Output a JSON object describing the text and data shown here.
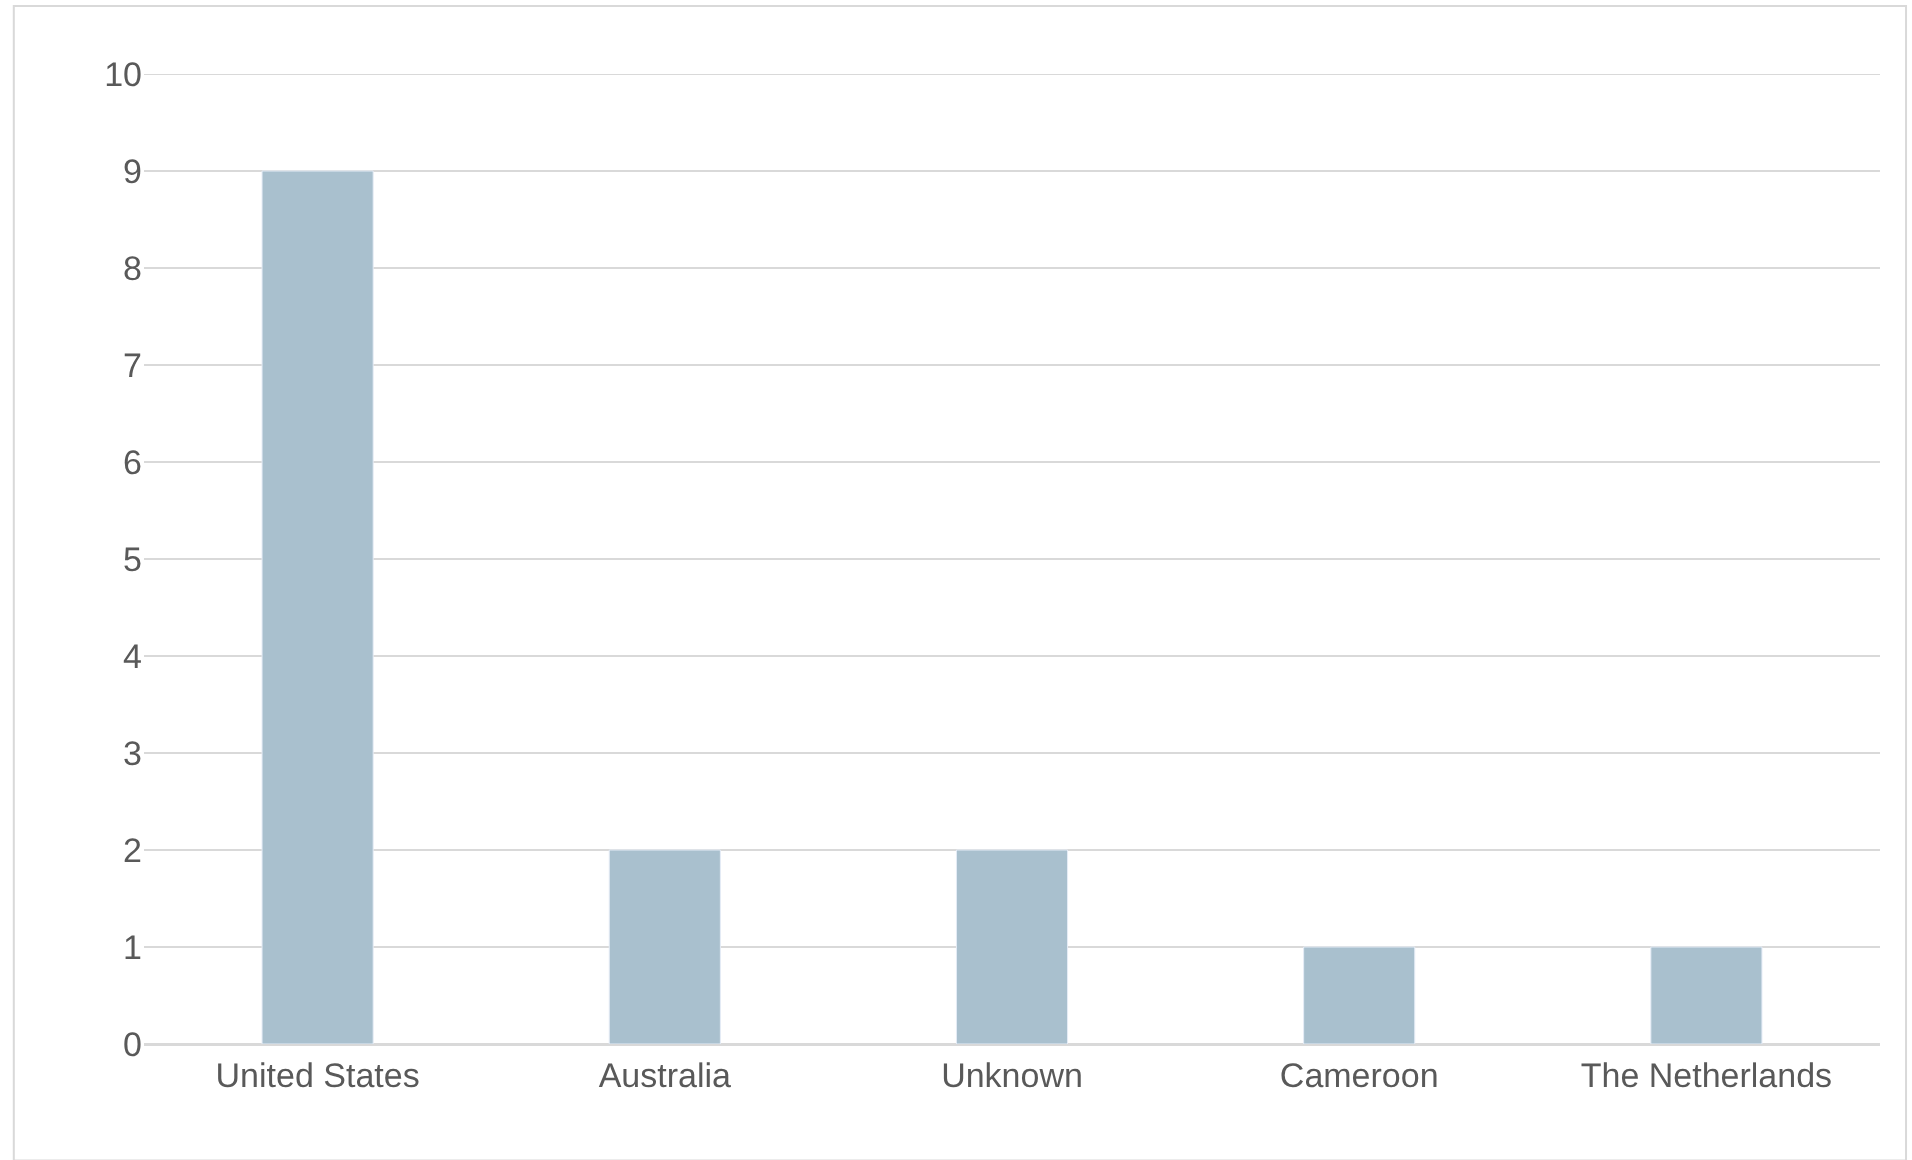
{
  "chart_data": {
    "type": "bar",
    "categories": [
      "United States",
      "Australia",
      "Unknown",
      "Cameroon",
      "The Netherlands"
    ],
    "values": [
      9,
      2,
      2,
      1,
      1
    ],
    "color": "#a9c0ce",
    "ylim": [
      0,
      10
    ],
    "yticks": [
      0,
      1,
      2,
      3,
      4,
      5,
      6,
      7,
      8,
      9,
      10
    ],
    "grid": "y"
  }
}
